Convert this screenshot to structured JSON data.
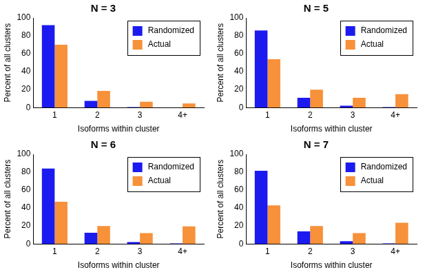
{
  "chart_data": [
    {
      "type": "bar",
      "title": "N = 3",
      "x_label": "Isoforms within cluster",
      "y_label": "Percent of all clusters",
      "categories": [
        "1",
        "2",
        "3",
        "4+"
      ],
      "series": [
        {
          "name": "Randomized",
          "color": "#1b1bf0",
          "values": [
            92,
            7.5,
            0.5,
            0
          ]
        },
        {
          "name": "Actual",
          "color": "#f7913a",
          "values": [
            70,
            18.5,
            6.5,
            4.5
          ]
        }
      ],
      "ylim": [
        0,
        100
      ],
      "yticks": [
        0,
        20,
        40,
        60,
        80,
        100
      ],
      "grid": false,
      "legend": "upper right"
    },
    {
      "type": "bar",
      "title": "N = 5",
      "x_label": "Isoforms within cluster",
      "y_label": "Percent of all clusters",
      "categories": [
        "1",
        "2",
        "3",
        "4+"
      ],
      "series": [
        {
          "name": "Randomized",
          "color": "#1b1bf0",
          "values": [
            86,
            11,
            2,
            0.5
          ]
        },
        {
          "name": "Actual",
          "color": "#f7913a",
          "values": [
            54,
            20,
            11,
            15
          ]
        }
      ],
      "ylim": [
        0,
        100
      ],
      "yticks": [
        0,
        20,
        40,
        60,
        80,
        100
      ],
      "grid": false,
      "legend": "upper right"
    },
    {
      "type": "bar",
      "title": "N = 6",
      "x_label": "Isoforms within cluster",
      "y_label": "Percent of all clusters",
      "categories": [
        "1",
        "2",
        "3",
        "4+"
      ],
      "series": [
        {
          "name": "Randomized",
          "color": "#1b1bf0",
          "values": [
            84,
            12.5,
            2,
            0.5
          ]
        },
        {
          "name": "Actual",
          "color": "#f7913a",
          "values": [
            47,
            20,
            12,
            19.5
          ]
        }
      ],
      "ylim": [
        0,
        100
      ],
      "yticks": [
        0,
        20,
        40,
        60,
        80,
        100
      ],
      "grid": false,
      "legend": "upper right"
    },
    {
      "type": "bar",
      "title": "N = 7",
      "x_label": "Isoforms within cluster",
      "y_label": "Percent of all clusters",
      "categories": [
        "1",
        "2",
        "3",
        "4+"
      ],
      "series": [
        {
          "name": "Randomized",
          "color": "#1b1bf0",
          "values": [
            81.5,
            14,
            3,
            0.5
          ]
        },
        {
          "name": "Actual",
          "color": "#f7913a",
          "values": [
            43,
            20,
            12,
            23.5
          ]
        }
      ],
      "ylim": [
        0,
        100
      ],
      "yticks": [
        0,
        20,
        40,
        60,
        80,
        100
      ],
      "grid": false,
      "legend": "upper right"
    }
  ]
}
